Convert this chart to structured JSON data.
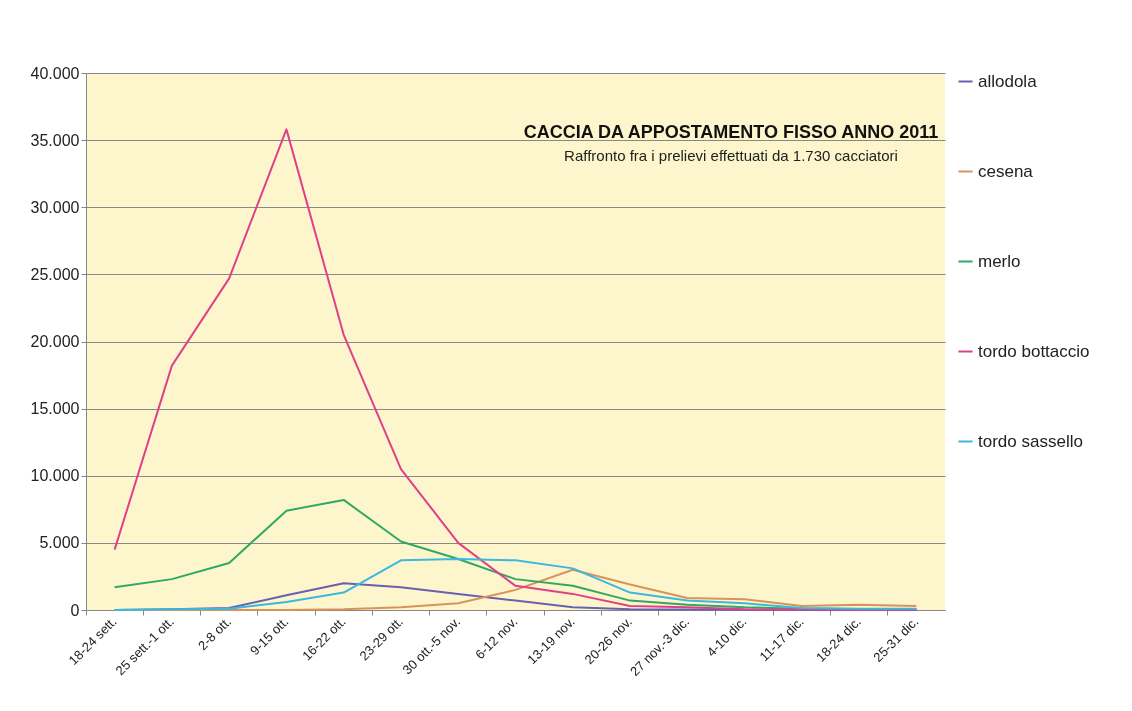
{
  "chart_data": {
    "type": "line",
    "title": "CACCIA DA APPOSTAMENTO FISSO ANNO 2011",
    "subtitle": "Raffronto fra i prelievi effettuati da 1.730 cacciatori",
    "categories": [
      "18-24 sett.",
      "25 sett.-1 ott.",
      "2-8 ott.",
      "9-15 ott.",
      "16-22 ott.",
      "23-29 ott.",
      "30 ott.-5 nov.",
      "6-12 nov.",
      "13-19 nov.",
      "20-26 nov.",
      "27 nov.-3 dic.",
      "4-10 dic.",
      "11-17 dic.",
      "18-24 dic.",
      "25-31 dic."
    ],
    "series": [
      {
        "name": "allodola",
        "color": "#6a5fb0",
        "values": [
          0,
          50,
          150,
          1100,
          2000,
          1700,
          1200,
          700,
          200,
          50,
          30,
          20,
          10,
          10,
          10
        ]
      },
      {
        "name": "cesena",
        "color": "#d9935a",
        "values": [
          0,
          0,
          0,
          0,
          50,
          200,
          500,
          1500,
          3000,
          1900,
          900,
          800,
          300,
          400,
          300
        ]
      },
      {
        "name": "merlo",
        "color": "#2fa866",
        "values": [
          1700,
          2300,
          3500,
          7400,
          8200,
          5100,
          3800,
          2300,
          1800,
          700,
          400,
          200,
          100,
          80,
          50
        ]
      },
      {
        "name": "tordo bottaccio",
        "color": "#e0408a",
        "values": [
          4500,
          18200,
          24700,
          35800,
          20500,
          10500,
          5000,
          1800,
          1200,
          300,
          200,
          50,
          30,
          20,
          10
        ]
      },
      {
        "name": "tordo sassello",
        "color": "#3ab8e0",
        "values": [
          0,
          50,
          100,
          600,
          1300,
          3700,
          3800,
          3700,
          3100,
          1300,
          700,
          500,
          150,
          100,
          100
        ]
      }
    ],
    "ylim": [
      0,
      40000
    ],
    "yticks": [
      {
        "value": 0,
        "label": "0"
      },
      {
        "value": 5000,
        "label": "5.000"
      },
      {
        "value": 10000,
        "label": "10.000"
      },
      {
        "value": 15000,
        "label": "15.000"
      },
      {
        "value": 20000,
        "label": "20.000"
      },
      {
        "value": 25000,
        "label": "25.000"
      },
      {
        "value": 30000,
        "label": "30.000"
      },
      {
        "value": 35000,
        "label": "35.000"
      },
      {
        "value": 40000,
        "label": "40.000"
      }
    ],
    "grid": "y",
    "legend": "right",
    "marker": "none",
    "line_style": "solid"
  }
}
